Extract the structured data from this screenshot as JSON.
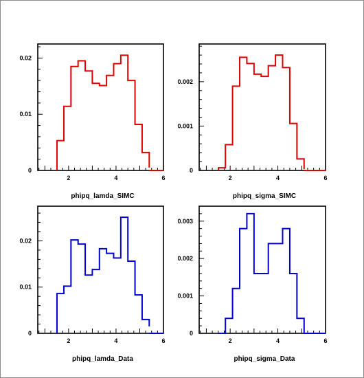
{
  "chart_data": [
    {
      "type": "histogram",
      "xlabel": "phipq_lamda_SIMC",
      "xlim": [
        0.7,
        6
      ],
      "ylim": [
        0,
        0.0225
      ],
      "xticks": [
        "2",
        "4",
        "6"
      ],
      "yticks": [
        "0",
        "0.01",
        "0.02"
      ],
      "ytick_values": [
        0,
        0.01,
        0.02
      ],
      "line_color": "#e00000",
      "series": [
        {
          "bin_edges": [
            1.51,
            1.8,
            2.1,
            2.4,
            2.7,
            3.0,
            3.3,
            3.6,
            3.9,
            4.2,
            4.5,
            4.8,
            5.1,
            5.4
          ],
          "values": [
            0.0053,
            0.0114,
            0.0185,
            0.0195,
            0.0177,
            0.0155,
            0.0151,
            0.0169,
            0.019,
            0.0205,
            0.016,
            0.0082,
            0.0032,
            0.0005
          ]
        }
      ]
    },
    {
      "type": "histogram",
      "xlabel": "phipq_sigma_SIMC",
      "xlim": [
        0.7,
        6
      ],
      "ylim": [
        0,
        0.00285
      ],
      "xticks": [
        "2",
        "4",
        "6"
      ],
      "yticks": [
        "0",
        "0.001",
        "0.002"
      ],
      "ytick_values": [
        0,
        0.001,
        0.002
      ],
      "line_color": "#e00000",
      "series": [
        {
          "bin_edges": [
            1.51,
            1.8,
            2.1,
            2.4,
            2.7,
            3.0,
            3.3,
            3.6,
            3.9,
            4.2,
            4.5,
            4.8,
            5.1
          ],
          "values": [
            6e-05,
            0.00058,
            0.0019,
            0.00255,
            0.00241,
            0.00217,
            0.00212,
            0.00236,
            0.0026,
            0.00232,
            0.00106,
            0.00026,
            3e-05
          ]
        }
      ]
    },
    {
      "type": "histogram",
      "xlabel": "phipq_lamda_Data",
      "xlim": [
        0.7,
        6
      ],
      "ylim": [
        0,
        0.0275
      ],
      "xticks": [
        "2",
        "4",
        "6"
      ],
      "yticks": [
        "0",
        "0.01",
        "0.02"
      ],
      "ytick_values": [
        0,
        0.01,
        0.02
      ],
      "line_color": "#0000d0",
      "series": [
        {
          "bin_edges": [
            1.51,
            1.8,
            2.1,
            2.4,
            2.7,
            3.0,
            3.3,
            3.6,
            3.9,
            4.2,
            4.5,
            4.8,
            5.1,
            5.4
          ],
          "values": [
            0.0086,
            0.0102,
            0.0202,
            0.0193,
            0.0126,
            0.0138,
            0.0183,
            0.0173,
            0.0163,
            0.0251,
            0.0156,
            0.0083,
            0.003,
            0.0015
          ]
        }
      ]
    },
    {
      "type": "histogram",
      "xlabel": "phipq_sigma_Data",
      "xlim": [
        0.7,
        6
      ],
      "ylim": [
        0,
        0.0034
      ],
      "xticks": [
        "2",
        "4",
        "6"
      ],
      "yticks": [
        "0",
        "0.001",
        "0.002",
        "0.003"
      ],
      "ytick_values": [
        0,
        0.001,
        0.002,
        0.003
      ],
      "line_color": "#0000d0",
      "series": [
        {
          "bin_edges": [
            1.51,
            1.8,
            2.1,
            2.4,
            2.7,
            3.0,
            3.3,
            3.6,
            3.9,
            4.2,
            4.5,
            4.8,
            5.1
          ],
          "values": [
            0,
            0.0004,
            0.0012,
            0.0028,
            0.0032,
            0.0016,
            0.0016,
            0.0024,
            0.0024,
            0.0028,
            0.0016,
            0.0004,
            0
          ]
        }
      ]
    }
  ]
}
